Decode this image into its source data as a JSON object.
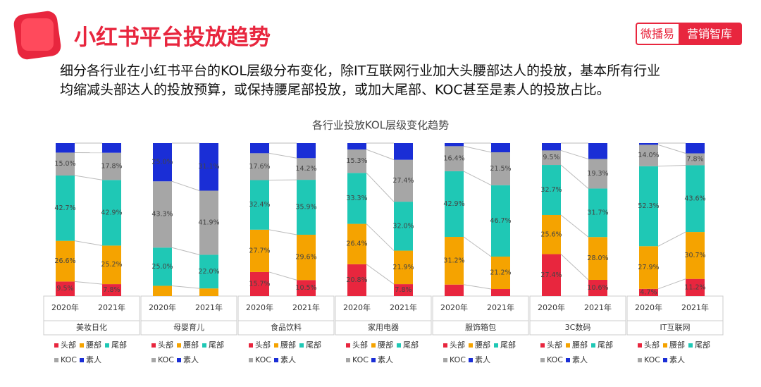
{
  "header": {
    "title": "小红书平台投放趋势",
    "subtitle": [
      "细分各行业在小红书平台的KOL层级分布变化，除IT互联网行业加大头腰部达人的投放，基本所有行业",
      "均缩减头部达人的投放预算，或保持腰尾部投放，或加大尾部、KOC甚至是素人的投放占比。"
    ],
    "brand": [
      "微播易",
      "营销智库"
    ]
  },
  "chart_data": {
    "type": "bar",
    "stacked": true,
    "title": "各行业投放KOL层级变化趋势",
    "panels": [
      {
        "name": "美妆日化",
        "categories": [
          "2020年",
          "2021年"
        ],
        "series": [
          {
            "name": "头部",
            "color": "#e8263e",
            "values": [
              9.5,
              7.8
            ],
            "value_labels": [
              "9.5%",
              "7.8%"
            ]
          },
          {
            "name": "腰部",
            "color": "#f5a300",
            "values": [
              26.6,
              25.2
            ],
            "value_labels": [
              "26.6%",
              "25.2%"
            ]
          },
          {
            "name": "尾部",
            "color": "#1fc8b5",
            "values": [
              42.7,
              42.9
            ],
            "value_labels": [
              "42.7%",
              "42.9%"
            ]
          },
          {
            "name": "KOC",
            "color": "#a6a6a6",
            "values": [
              15.0,
              17.8
            ],
            "value_labels": [
              "15.0%",
              "17.8%"
            ]
          },
          {
            "name": "素人",
            "color": "#1a2ed6",
            "values": [
              6.2,
              6.3
            ],
            "value_labels": [
              null,
              null
            ]
          }
        ]
      },
      {
        "name": "母婴育儿",
        "categories": [
          "2020年",
          "2021年"
        ],
        "series": [
          {
            "name": "头部",
            "color": "#e8263e",
            "values": [
              0,
              0
            ],
            "value_labels": [
              null,
              null
            ]
          },
          {
            "name": "腰部",
            "color": "#f5a300",
            "values": [
              6.7,
              5.0
            ],
            "value_labels": [
              null,
              null
            ]
          },
          {
            "name": "尾部",
            "color": "#1fc8b5",
            "values": [
              25.0,
              22.0
            ],
            "value_labels": [
              "25.0%",
              "22.0%"
            ]
          },
          {
            "name": "KOC",
            "color": "#a6a6a6",
            "values": [
              43.3,
              41.9
            ],
            "value_labels": [
              "43.3%",
              "41.9%"
            ]
          },
          {
            "name": "素人",
            "color": "#1a2ed6",
            "values": [
              25.0,
              31.1
            ],
            "value_labels": [
              "25.0%",
              "31.1%"
            ]
          }
        ]
      },
      {
        "name": "食品饮料",
        "categories": [
          "2020年",
          "2021年"
        ],
        "series": [
          {
            "name": "头部",
            "color": "#e8263e",
            "values": [
              15.7,
              10.5
            ],
            "value_labels": [
              "15.7%",
              "10.5%"
            ]
          },
          {
            "name": "腰部",
            "color": "#f5a300",
            "values": [
              27.7,
              29.6
            ],
            "value_labels": [
              "27.7%",
              "29.6%"
            ]
          },
          {
            "name": "尾部",
            "color": "#1fc8b5",
            "values": [
              32.4,
              35.9
            ],
            "value_labels": [
              "32.4%",
              "35.9%"
            ]
          },
          {
            "name": "KOC",
            "color": "#a6a6a6",
            "values": [
              17.6,
              14.2
            ],
            "value_labels": [
              "17.6%",
              "14.2%"
            ]
          },
          {
            "name": "素人",
            "color": "#1a2ed6",
            "values": [
              6.6,
              9.8
            ],
            "value_labels": [
              null,
              null
            ]
          }
        ]
      },
      {
        "name": "家用电器",
        "categories": [
          "2020年",
          "2021年"
        ],
        "series": [
          {
            "name": "头部",
            "color": "#e8263e",
            "values": [
              20.8,
              7.8
            ],
            "value_labels": [
              "20.8%",
              "7.8%"
            ]
          },
          {
            "name": "腰部",
            "color": "#f5a300",
            "values": [
              26.4,
              21.9
            ],
            "value_labels": [
              "26.4%",
              "21.9%"
            ]
          },
          {
            "name": "尾部",
            "color": "#1fc8b5",
            "values": [
              33.3,
              32.0
            ],
            "value_labels": [
              "33.3%",
              "32.0%"
            ]
          },
          {
            "name": "KOC",
            "color": "#a6a6a6",
            "values": [
              15.3,
              27.4
            ],
            "value_labels": [
              "15.3%",
              "27.4%"
            ]
          },
          {
            "name": "素人",
            "color": "#1a2ed6",
            "values": [
              4.2,
              10.9
            ],
            "value_labels": [
              null,
              null
            ]
          }
        ]
      },
      {
        "name": "服饰箱包",
        "categories": [
          "2020年",
          "2021年"
        ],
        "series": [
          {
            "name": "头部",
            "color": "#e8263e",
            "values": [
              7.5,
              4.6
            ],
            "value_labels": [
              null,
              null
            ]
          },
          {
            "name": "腰部",
            "color": "#f5a300",
            "values": [
              31.2,
              21.2
            ],
            "value_labels": [
              "31.2%",
              "21.2%"
            ]
          },
          {
            "name": "尾部",
            "color": "#1fc8b5",
            "values": [
              42.9,
              46.7
            ],
            "value_labels": [
              "42.9%",
              "46.7%"
            ]
          },
          {
            "name": "KOC",
            "color": "#a6a6a6",
            "values": [
              16.4,
              21.5
            ],
            "value_labels": [
              "16.4%",
              "21.5%"
            ]
          },
          {
            "name": "素人",
            "color": "#1a2ed6",
            "values": [
              2.0,
              6.0
            ],
            "value_labels": [
              null,
              null
            ]
          }
        ]
      },
      {
        "name": "3C数码",
        "categories": [
          "2020年",
          "2021年"
        ],
        "series": [
          {
            "name": "头部",
            "color": "#e8263e",
            "values": [
              27.4,
              10.6
            ],
            "value_labels": [
              "27.4%",
              "10.6%"
            ]
          },
          {
            "name": "腰部",
            "color": "#f5a300",
            "values": [
              25.6,
              28.0
            ],
            "value_labels": [
              "25.6%",
              "28.0%"
            ]
          },
          {
            "name": "尾部",
            "color": "#1fc8b5",
            "values": [
              32.7,
              31.7
            ],
            "value_labels": [
              "32.7%",
              "31.7%"
            ]
          },
          {
            "name": "KOC",
            "color": "#a6a6a6",
            "values": [
              9.5,
              19.3
            ],
            "value_labels": [
              "9.5%",
              "19.3%"
            ]
          },
          {
            "name": "素人",
            "color": "#1a2ed6",
            "values": [
              4.8,
              10.4
            ],
            "value_labels": [
              null,
              null
            ]
          }
        ]
      },
      {
        "name": "IT互联网",
        "categories": [
          "2020年",
          "2021年"
        ],
        "series": [
          {
            "name": "头部",
            "color": "#e8263e",
            "values": [
              4.7,
              11.2
            ],
            "value_labels": [
              "4.7%",
              "11.2%"
            ]
          },
          {
            "name": "腰部",
            "color": "#f5a300",
            "values": [
              27.9,
              30.7
            ],
            "value_labels": [
              "27.9%",
              "30.7%"
            ]
          },
          {
            "name": "尾部",
            "color": "#1fc8b5",
            "values": [
              52.3,
              43.6
            ],
            "value_labels": [
              "52.3%",
              "43.6%"
            ]
          },
          {
            "name": "KOC",
            "color": "#a6a6a6",
            "values": [
              14.0,
              7.8
            ],
            "value_labels": [
              "14.0%",
              "7.8%"
            ]
          },
          {
            "name": "素人",
            "color": "#1a2ed6",
            "values": [
              1.1,
              6.7
            ],
            "value_labels": [
              null,
              null
            ]
          }
        ]
      }
    ]
  }
}
